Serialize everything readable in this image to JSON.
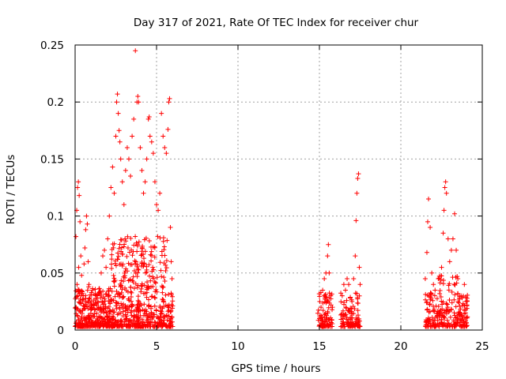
{
  "chart_data": {
    "type": "scatter",
    "title": "Day 317 of 2021, Rate Of TEC Index for receiver chur",
    "xlabel": "GPS time / hours",
    "ylabel": "ROTI / TECUs",
    "xlim": [
      0,
      25
    ],
    "ylim": [
      0,
      0.25
    ],
    "x_ticks": [
      0,
      5,
      10,
      15,
      20,
      25
    ],
    "x_tick_labels": [
      "0",
      "5",
      "10",
      "15",
      "20",
      "25"
    ],
    "y_ticks": [
      0,
      0.05,
      0.1,
      0.15,
      0.2,
      0.25
    ],
    "y_tick_labels": [
      "0",
      "0.05",
      "0.1",
      "0.15",
      "0.2",
      "0.25"
    ],
    "grid": true,
    "marker": "+",
    "marker_color": "#ff0000",
    "series": [
      {
        "points": [
          [
            0.05,
            0.082
          ],
          [
            0.1,
            0.105
          ],
          [
            0.15,
            0.125
          ],
          [
            0.2,
            0.13
          ],
          [
            0.25,
            0.118
          ],
          [
            0.3,
            0.095
          ],
          [
            0.35,
            0.065
          ],
          [
            0.4,
            0.048
          ],
          [
            0.12,
            0.04
          ],
          [
            0.22,
            0.055
          ],
          [
            0.5,
            0.03
          ],
          [
            0.55,
            0.058
          ],
          [
            0.6,
            0.072
          ],
          [
            0.65,
            0.088
          ],
          [
            0.7,
            0.1
          ],
          [
            0.75,
            0.093
          ],
          [
            0.8,
            0.06
          ],
          [
            0.85,
            0.04
          ],
          [
            0.9,
            0.028
          ],
          [
            1.0,
            0.022
          ],
          [
            1.2,
            0.018
          ],
          [
            1.4,
            0.025
          ],
          [
            1.6,
            0.05
          ],
          [
            1.7,
            0.065
          ],
          [
            1.8,
            0.07
          ],
          [
            1.9,
            0.055
          ],
          [
            2.0,
            0.08
          ],
          [
            2.1,
            0.1
          ],
          [
            2.2,
            0.125
          ],
          [
            2.3,
            0.143
          ],
          [
            2.4,
            0.12
          ],
          [
            2.5,
            0.17
          ],
          [
            2.55,
            0.2
          ],
          [
            2.6,
            0.207
          ],
          [
            2.65,
            0.19
          ],
          [
            2.7,
            0.175
          ],
          [
            2.75,
            0.165
          ],
          [
            2.8,
            0.15
          ],
          [
            2.9,
            0.13
          ],
          [
            3.0,
            0.11
          ],
          [
            3.1,
            0.14
          ],
          [
            3.2,
            0.16
          ],
          [
            3.3,
            0.15
          ],
          [
            3.4,
            0.135
          ],
          [
            3.5,
            0.17
          ],
          [
            3.6,
            0.185
          ],
          [
            3.7,
            0.245
          ],
          [
            3.8,
            0.2
          ],
          [
            3.85,
            0.205
          ],
          [
            3.9,
            0.2
          ],
          [
            4.0,
            0.16
          ],
          [
            4.1,
            0.14
          ],
          [
            4.2,
            0.12
          ],
          [
            4.3,
            0.13
          ],
          [
            4.4,
            0.15
          ],
          [
            4.5,
            0.185
          ],
          [
            4.55,
            0.187
          ],
          [
            4.6,
            0.17
          ],
          [
            4.7,
            0.165
          ],
          [
            4.8,
            0.155
          ],
          [
            4.9,
            0.13
          ],
          [
            5.0,
            0.11
          ],
          [
            5.1,
            0.105
          ],
          [
            5.2,
            0.12
          ],
          [
            5.3,
            0.19
          ],
          [
            5.4,
            0.17
          ],
          [
            5.5,
            0.16
          ],
          [
            5.6,
            0.155
          ],
          [
            5.7,
            0.176
          ],
          [
            5.75,
            0.2
          ],
          [
            5.8,
            0.203
          ],
          [
            5.85,
            0.09
          ],
          [
            5.9,
            0.06
          ],
          [
            5.95,
            0.045
          ],
          [
            15.0,
            0.01
          ],
          [
            15.1,
            0.02
          ],
          [
            15.2,
            0.035
          ],
          [
            15.3,
            0.045
          ],
          [
            15.4,
            0.05
          ],
          [
            15.5,
            0.065
          ],
          [
            15.55,
            0.075
          ],
          [
            15.6,
            0.05
          ],
          [
            15.7,
            0.03
          ],
          [
            15.8,
            0.02
          ],
          [
            16.4,
            0.03
          ],
          [
            16.5,
            0.04
          ],
          [
            16.6,
            0.035
          ],
          [
            16.7,
            0.045
          ],
          [
            16.8,
            0.04
          ],
          [
            17.0,
            0.025
          ],
          [
            17.1,
            0.045
          ],
          [
            17.2,
            0.065
          ],
          [
            17.25,
            0.096
          ],
          [
            17.3,
            0.12
          ],
          [
            17.35,
            0.133
          ],
          [
            17.4,
            0.137
          ],
          [
            17.45,
            0.055
          ],
          [
            17.5,
            0.04
          ],
          [
            21.5,
            0.045
          ],
          [
            21.6,
            0.068
          ],
          [
            21.65,
            0.095
          ],
          [
            21.7,
            0.115
          ],
          [
            21.8,
            0.09
          ],
          [
            21.9,
            0.05
          ],
          [
            22.0,
            0.04
          ],
          [
            22.1,
            0.035
          ],
          [
            22.3,
            0.045
          ],
          [
            22.5,
            0.055
          ],
          [
            22.6,
            0.085
          ],
          [
            22.65,
            0.105
          ],
          [
            22.7,
            0.125
          ],
          [
            22.75,
            0.13
          ],
          [
            22.8,
            0.12
          ],
          [
            22.9,
            0.08
          ],
          [
            23.0,
            0.06
          ],
          [
            23.1,
            0.07
          ],
          [
            23.2,
            0.08
          ],
          [
            23.3,
            0.102
          ],
          [
            23.4,
            0.07
          ],
          [
            23.5,
            0.045
          ],
          [
            23.7,
            0.03
          ],
          [
            23.9,
            0.04
          ],
          [
            24.0,
            0.025
          ]
        ]
      }
    ]
  }
}
